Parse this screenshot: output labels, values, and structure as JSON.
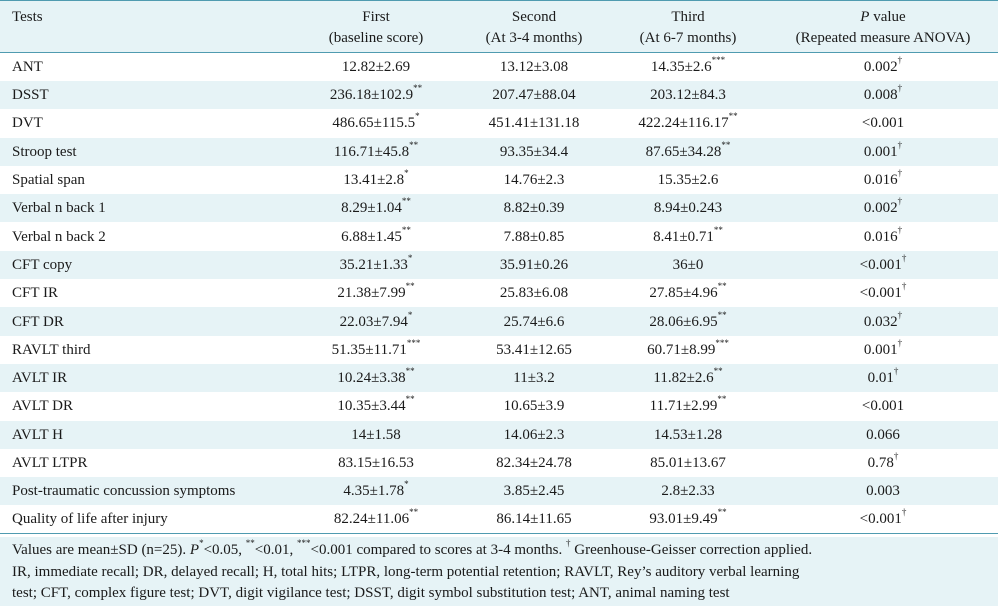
{
  "table": {
    "headers": {
      "test": "Tests",
      "first": [
        "First",
        "(baseline score)"
      ],
      "second": [
        "Second",
        "(At 3-4 months)"
      ],
      "third": [
        "Third",
        "(At 6-7 months)"
      ],
      "pvalue_italic": "P",
      "pvalue_rest": " value",
      "pvalue_sub": "(Repeated measure ANOVA)"
    },
    "rows": [
      {
        "name": "ANT",
        "first": "12.82±2.69",
        "first_sup": "",
        "second": "13.12±3.08",
        "second_sup": "",
        "third": "14.35±2.6",
        "third_sup": "***",
        "p": "0.002",
        "p_sup": "†"
      },
      {
        "name": "DSST",
        "first": "236.18±102.9",
        "first_sup": "**",
        "second": "207.47±88.04",
        "second_sup": "",
        "third": "203.12±84.3",
        "third_sup": "",
        "p": "0.008",
        "p_sup": "†"
      },
      {
        "name": "DVT",
        "first": "486.65±115.5",
        "first_sup": "*",
        "second": "451.41±131.18",
        "second_sup": "",
        "third": "422.24±116.17",
        "third_sup": "**",
        "p": "<0.001",
        "p_sup": ""
      },
      {
        "name": "Stroop test",
        "first": "116.71±45.8",
        "first_sup": "**",
        "second": "93.35±34.4",
        "second_sup": "",
        "third": "87.65±34.28",
        "third_sup": "**",
        "p": "0.001",
        "p_sup": "†"
      },
      {
        "name": "Spatial span",
        "first": "13.41±2.8",
        "first_sup": "*",
        "second": "14.76±2.3",
        "second_sup": "",
        "third": "15.35±2.6",
        "third_sup": "",
        "p": "0.016",
        "p_sup": "†"
      },
      {
        "name": "Verbal n back 1",
        "first": "8.29±1.04",
        "first_sup": "**",
        "second": "8.82±0.39",
        "second_sup": "",
        "third": "8.94±0.243",
        "third_sup": "",
        "p": "0.002",
        "p_sup": "†"
      },
      {
        "name": "Verbal n back 2",
        "first": "6.88±1.45",
        "first_sup": "**",
        "second": "7.88±0.85",
        "second_sup": "",
        "third": "8.41±0.71",
        "third_sup": "**",
        "p": "0.016",
        "p_sup": "†"
      },
      {
        "name": "CFT copy",
        "first": "35.21±1.33",
        "first_sup": "*",
        "second": "35.91±0.26",
        "second_sup": "",
        "third": "36±0",
        "third_sup": "",
        "p": "<0.001",
        "p_sup": "†"
      },
      {
        "name": "CFT IR",
        "first": "21.38±7.99",
        "first_sup": "**",
        "second": "25.83±6.08",
        "second_sup": "",
        "third": "27.85±4.96",
        "third_sup": "**",
        "p": "<0.001",
        "p_sup": "†"
      },
      {
        "name": "CFT DR",
        "first": "22.03±7.94",
        "first_sup": "*",
        "second": "25.74±6.6",
        "second_sup": "",
        "third": "28.06±6.95",
        "third_sup": "**",
        "p": "0.032",
        "p_sup": "†"
      },
      {
        "name": "RAVLT third",
        "first": "51.35±11.71",
        "first_sup": "***",
        "second": "53.41±12.65",
        "second_sup": "",
        "third": "60.71±8.99",
        "third_sup": "***",
        "p": "0.001",
        "p_sup": "†"
      },
      {
        "name": "AVLT IR",
        "first": "10.24±3.38",
        "first_sup": "**",
        "second": "11±3.2",
        "second_sup": "",
        "third": "11.82±2.6",
        "third_sup": "**",
        "p": "0.01",
        "p_sup": "†"
      },
      {
        "name": "AVLT DR",
        "first": "10.35±3.44",
        "first_sup": "**",
        "second": "10.65±3.9",
        "second_sup": "",
        "third": "11.71±2.99",
        "third_sup": "**",
        "p": "<0.001",
        "p_sup": ""
      },
      {
        "name": "AVLT H",
        "first": "14±1.58",
        "first_sup": "",
        "second": "14.06±2.3",
        "second_sup": "",
        "third": "14.53±1.28",
        "third_sup": "",
        "p": "0.066",
        "p_sup": ""
      },
      {
        "name": "AVLT LTPR",
        "first": "83.15±16.53",
        "first_sup": "",
        "second": "82.34±24.78",
        "second_sup": "",
        "third": "85.01±13.67",
        "third_sup": "",
        "p": "0.78",
        "p_sup": "†"
      },
      {
        "name": "Post-traumatic concussion symptoms",
        "first": "4.35±1.78",
        "first_sup": "*",
        "second": "3.85±2.45",
        "second_sup": "",
        "third": "2.8±2.33",
        "third_sup": "",
        "p": "0.003",
        "p_sup": ""
      },
      {
        "name": "Quality of life after injury",
        "first": "82.24±11.06",
        "first_sup": "**",
        "second": "86.14±11.65",
        "second_sup": "",
        "third": "93.01±9.49",
        "third_sup": "**",
        "p": "<0.001",
        "p_sup": "†"
      }
    ]
  },
  "footnote": {
    "seg1": "Values are mean±SD (n=25). ",
    "p1": "P",
    "sup1": "*",
    "seg2": "<0.05, ",
    "sup2": "**",
    "seg3": "<0.01, ",
    "sup3": "***",
    "seg4": "<0.001 compared to scores at 3-4 months. ",
    "sup4": "†",
    "seg5": " Greenhouse-Geisser correction applied.",
    "line2": "IR, immediate recall; DR, delayed recall; H, total hits; LTPR, long-term potential retention; RAVLT, Rey’s auditory verbal learning",
    "line3": "test; CFT, complex figure test; DVT, digit vigilance test; DSST, digit symbol substitution test; ANT, animal naming test"
  },
  "colors": {
    "stripe": "#e6f3f6",
    "rule": "#4f9bb0"
  }
}
